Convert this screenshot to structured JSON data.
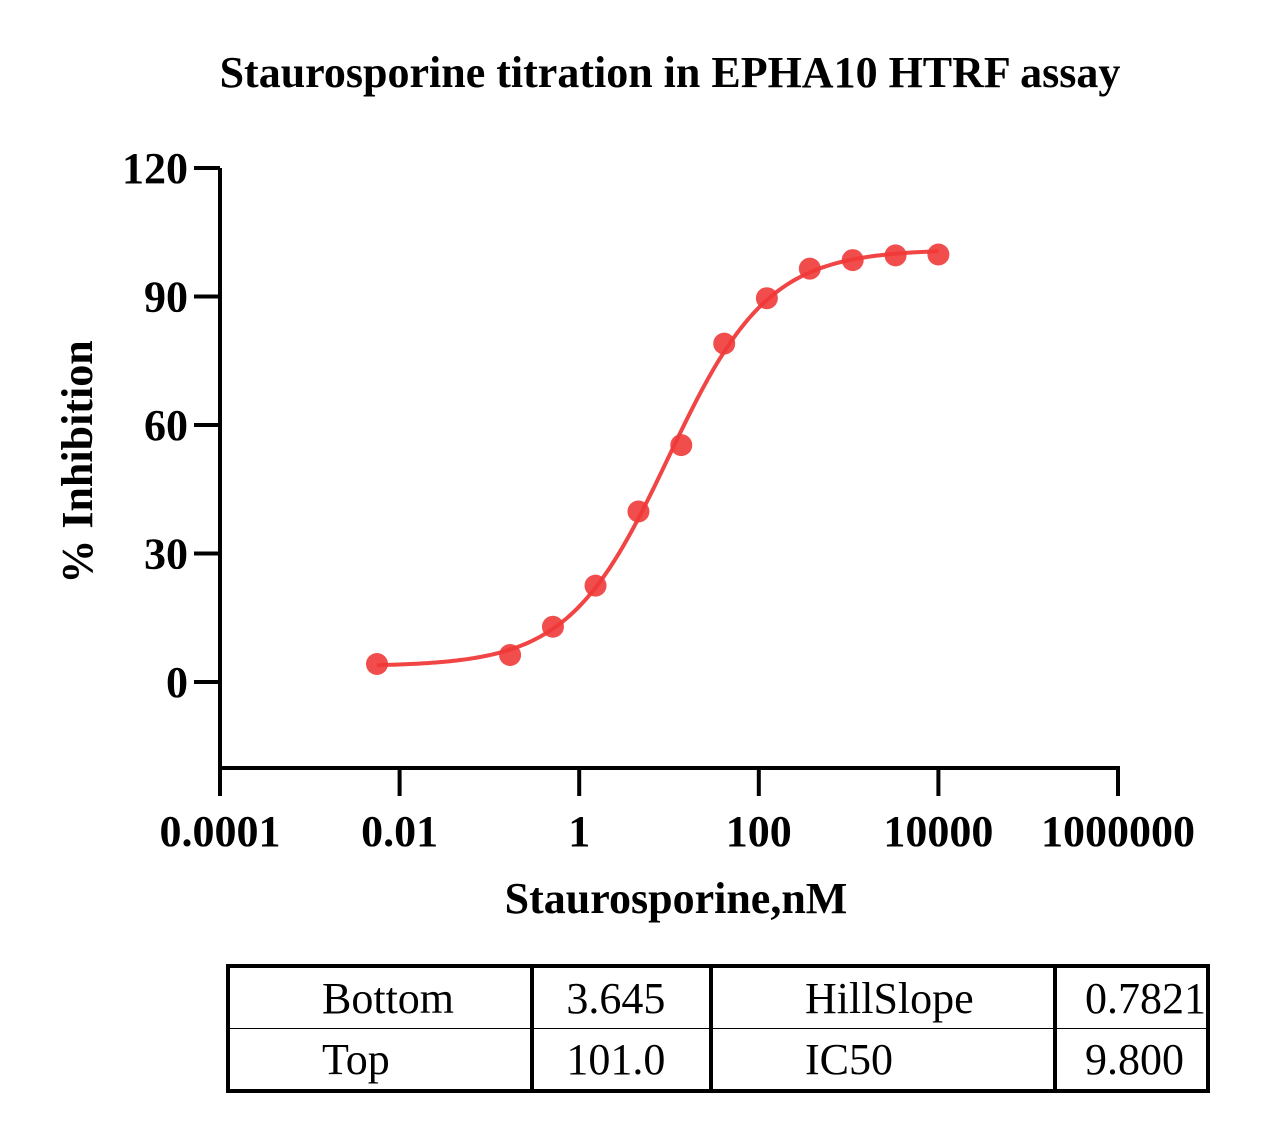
{
  "chart_data": {
    "type": "scatter",
    "title": "Staurosporine titration in EPHA10 HTRF assay",
    "xlabel": "Staurosporine,nM",
    "ylabel": "% Inhibition",
    "xscale": "log",
    "xlim": [
      0.0001,
      1000000
    ],
    "ylim": [
      -25,
      120
    ],
    "xticks": [
      0.0001,
      0.01,
      1,
      100,
      10000,
      1000000
    ],
    "xtick_labels": [
      "0.0001",
      "0.01",
      "1",
      "100",
      "10000",
      "1000000"
    ],
    "yticks": [
      0,
      30,
      60,
      90,
      120
    ],
    "ytick_labels": [
      "0",
      "30",
      "60",
      "90",
      "120"
    ],
    "grid": false,
    "color": "#f03a3a",
    "series": [
      {
        "x": [
          0.0056,
          0.17,
          0.51,
          1.52,
          4.57,
          13.7,
          41.2,
          123,
          370,
          1111,
          3333,
          10000
        ],
        "y": [
          4.2,
          6.3,
          12.9,
          22.5,
          39.8,
          55.3,
          79.0,
          89.6,
          96.5,
          98.5,
          99.6,
          99.8
        ]
      }
    ],
    "fit": {
      "model": "four-parameter logistic",
      "bottom": 3.645,
      "top": 101.0,
      "hillslope": 0.7821,
      "ic50": 9.8
    }
  },
  "params_table": {
    "rows": [
      [
        "Bottom",
        "3.645",
        "HillSlope",
        "0.7821"
      ],
      [
        "Top",
        "101.0",
        "IC50",
        "9.800"
      ]
    ]
  }
}
